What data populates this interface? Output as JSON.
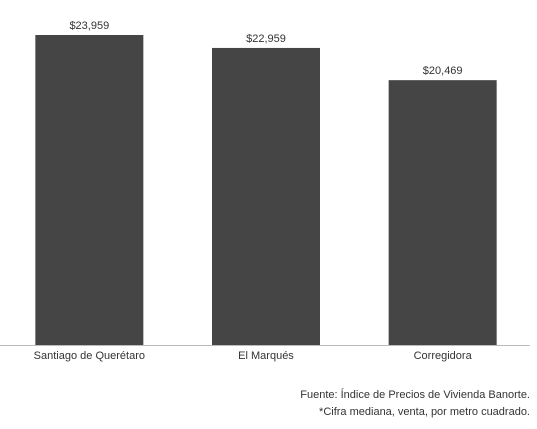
{
  "chart_data": {
    "type": "bar",
    "categories": [
      "Santiago de Querétaro",
      "El Marqués",
      "Corregidora"
    ],
    "values": [
      23959,
      22959,
      20469
    ],
    "value_labels": [
      "$23,959",
      "$22,959",
      "$20,469"
    ],
    "color": "#454545"
  },
  "footer": {
    "source": "Fuente: Índice de Precios de Vivienda Banorte.",
    "note": "*Cifra mediana, venta, por metro cuadrado."
  }
}
